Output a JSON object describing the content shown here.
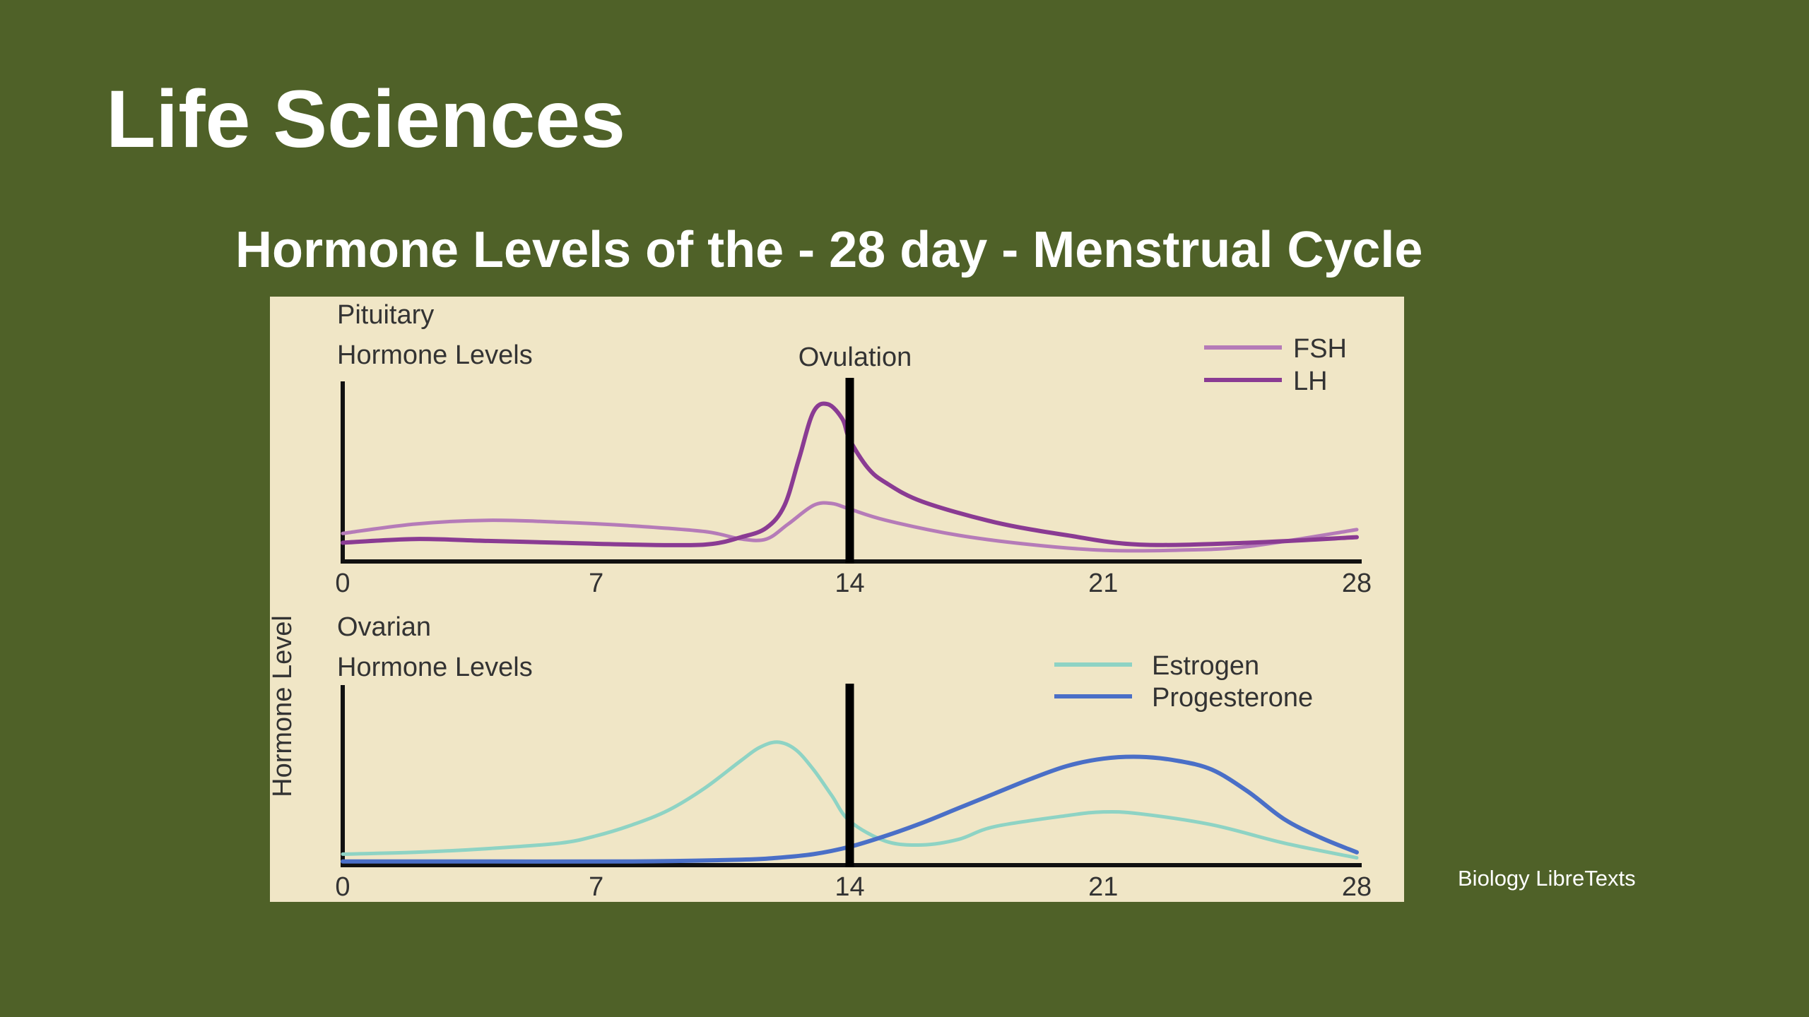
{
  "slide": {
    "title": "Life Sciences",
    "source": "Biology LibreTexts"
  },
  "colors": {
    "background": "#4f6128",
    "panel": "#f0e6c6",
    "fsh": "#b57bb8",
    "lh": "#8a3b93",
    "estrogen": "#8ed3c4",
    "progesterone": "#4a6fc7"
  },
  "chart_data": [
    {
      "type": "line",
      "title": "Hormone Levels of the - 28 day - Menstrual Cycle",
      "panel_label_1": "Pituitary",
      "panel_label_2": "Hormone Levels",
      "ylabel": "Hormone Level",
      "xlim": [
        0,
        28
      ],
      "xticks": [
        "0",
        "7",
        "14",
        "21",
        "28"
      ],
      "annotation": "Ovulation",
      "ovulation_day": 14,
      "legend_position": "top-right",
      "series": [
        {
          "name": "FSH",
          "x": [
            0,
            2,
            4,
            6,
            8,
            10,
            11,
            11.7,
            12.3,
            13,
            13.5,
            14,
            15,
            17,
            19,
            21,
            23,
            25,
            28
          ],
          "y": [
            0.15,
            0.2,
            0.22,
            0.21,
            0.19,
            0.16,
            0.12,
            0.12,
            0.2,
            0.3,
            0.31,
            0.28,
            0.22,
            0.14,
            0.09,
            0.06,
            0.06,
            0.08,
            0.17
          ]
        },
        {
          "name": "LH",
          "x": [
            0,
            2,
            4,
            6,
            8,
            10,
            11,
            11.7,
            12.2,
            12.6,
            13,
            13.4,
            13.8,
            14,
            14.5,
            15,
            16,
            18,
            20,
            22,
            25,
            28
          ],
          "y": [
            0.1,
            0.12,
            0.11,
            0.1,
            0.09,
            0.09,
            0.13,
            0.18,
            0.3,
            0.55,
            0.8,
            0.84,
            0.76,
            0.65,
            0.5,
            0.42,
            0.32,
            0.21,
            0.14,
            0.09,
            0.1,
            0.13
          ]
        }
      ]
    },
    {
      "type": "line",
      "panel_label_1": "Ovarian",
      "panel_label_2": "Hormone Levels",
      "xlim": [
        0,
        28
      ],
      "xticks": [
        "0",
        "7",
        "14",
        "21",
        "28"
      ],
      "ovulation_day": 14,
      "legend_position": "top-right",
      "series": [
        {
          "name": "Estrogen",
          "x": [
            0,
            2,
            4,
            6,
            7,
            8,
            9,
            10,
            11,
            11.5,
            12,
            12.5,
            13,
            13.5,
            14,
            15,
            16,
            17,
            18,
            20,
            21,
            22,
            24,
            26,
            28
          ],
          "y": [
            0.06,
            0.07,
            0.09,
            0.12,
            0.16,
            0.22,
            0.3,
            0.42,
            0.57,
            0.64,
            0.67,
            0.63,
            0.52,
            0.38,
            0.24,
            0.13,
            0.11,
            0.14,
            0.21,
            0.27,
            0.29,
            0.28,
            0.22,
            0.12,
            0.04
          ]
        },
        {
          "name": "Progesterone",
          "x": [
            0,
            4,
            8,
            11,
            12,
            13,
            14,
            15,
            16,
            17,
            18,
            19,
            20,
            21,
            22,
            23,
            24,
            25,
            26,
            27,
            28
          ],
          "y": [
            0.02,
            0.02,
            0.02,
            0.03,
            0.04,
            0.06,
            0.1,
            0.16,
            0.23,
            0.31,
            0.39,
            0.47,
            0.54,
            0.58,
            0.59,
            0.57,
            0.52,
            0.4,
            0.25,
            0.15,
            0.07
          ]
        }
      ]
    }
  ]
}
